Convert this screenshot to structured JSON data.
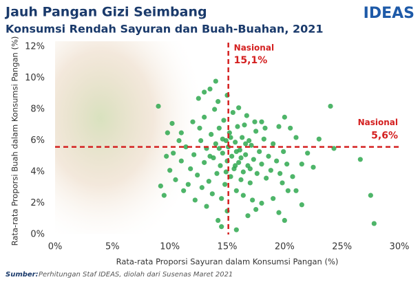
{
  "chart_data": {
    "type": "scatter",
    "title": "Jauh Pangan Gizi Seimbang",
    "subtitle": "Konsumsi Rendah Sayuran dan Buah-Buahan, 2021",
    "logo": "IDEAS",
    "x_label": "Rata-rata Proporsi Sayuran dalam Konsumsi Pangan (%)",
    "y_label": "Rata-rata Proporsi Buah dalam Konsumsi Pangan (%)",
    "source_label": "Sumber:",
    "source_text": "Perhitungan Staf IDEAS, diolah dari Susenas Maret 2021",
    "color": "#2fa84f",
    "xlim": [
      0,
      30
    ],
    "ylim": [
      0,
      12
    ],
    "xticks": [
      {
        "value": 0,
        "label": "0%"
      },
      {
        "value": 5,
        "label": "5%"
      },
      {
        "value": 10,
        "label": "10%"
      },
      {
        "value": 15,
        "label": "15%"
      },
      {
        "value": 20,
        "label": "20%"
      },
      {
        "value": 25,
        "label": "25%"
      },
      {
        "value": 30,
        "label": "30%"
      }
    ],
    "yticks": [
      {
        "value": 0,
        "label": "0%"
      },
      {
        "value": 2,
        "label": "2%"
      },
      {
        "value": 4,
        "label": "4%"
      },
      {
        "value": 6,
        "label": "6%"
      },
      {
        "value": 8,
        "label": "8%"
      },
      {
        "value": 10,
        "label": "10%"
      },
      {
        "value": 12,
        "label": "12%"
      }
    ],
    "reference_lines": [
      {
        "axis": "x",
        "value": 15.1,
        "label": "Nasional",
        "value_label": "15,1%",
        "color": "#d42020"
      },
      {
        "axis": "y",
        "value": 5.6,
        "label": "Nasional",
        "value_label": "5,6%",
        "color": "#d42020"
      }
    ],
    "x": [
      24,
      24.3,
      26.6,
      27.5,
      27.8,
      22.5,
      21.5,
      14,
      12.5,
      9,
      17.2,
      19.5,
      20,
      14.5,
      15.8,
      14.2,
      9.5,
      9.2,
      9.8,
      10.2,
      23,
      20,
      20.5,
      21,
      19.5,
      18,
      13,
      13.5,
      12,
      11,
      22,
      21.5,
      20.7,
      19.8,
      21,
      18,
      17.5,
      16.8,
      15,
      13.2,
      12.2,
      11.2,
      10.5,
      10,
      9.7,
      19,
      20.3,
      11.8,
      12.1,
      12.4,
      12.7,
      13.0,
      13.2,
      13.4,
      13.6,
      13.8,
      14.0,
      14.1,
      14.3,
      14.4,
      14.6,
      14.7,
      14.8,
      14.9,
      15.0,
      15.1,
      15.2,
      15.3,
      15.4,
      15.5,
      15.6,
      15.7,
      15.8,
      15.9,
      16.0,
      16.1,
      16.2,
      16.3,
      16.4,
      16.5,
      16.6,
      16.8,
      16.9,
      17.0,
      17.1,
      17.3,
      17.5,
      17.6,
      17.8,
      18.0,
      18.2,
      18.4,
      18.6,
      18.8,
      19.0,
      19.3,
      19.6,
      19.9,
      20.2,
      13.0,
      12.6,
      11.4,
      11.0,
      10.8,
      10.3,
      13.9,
      14.2,
      15.0,
      16.0,
      16.7,
      17.4,
      18.3,
      12.8,
      13.7,
      14.5,
      16.4,
      11.6,
      14.9,
      15.3,
      15.8,
      14.6,
      16.2,
      13.5,
      17.0,
      15.7,
      14.3,
      16.6
    ],
    "y": [
      8.2,
      5.5,
      4.8,
      2.5,
      0.7,
      4.3,
      1.9,
      9.8,
      8.7,
      8.2,
      2.2,
      1.4,
      0.9,
      0.5,
      0.3,
      0.9,
      2.5,
      3.1,
      6.5,
      7.1,
      6.1,
      7.5,
      6.8,
      6.2,
      6.9,
      7.2,
      9.1,
      9.3,
      7.2,
      6.5,
      5.2,
      4.5,
      3.7,
      3.3,
      2.8,
      2.0,
      1.6,
      1.2,
      1.5,
      1.8,
      2.2,
      2.8,
      3.5,
      4.1,
      5,
      2.3,
      2.8,
      4.2,
      5.1,
      3.8,
      6.0,
      4.6,
      5.5,
      3.4,
      6.4,
      4.9,
      5.8,
      3.9,
      6.8,
      4.4,
      5.2,
      7.3,
      3.2,
      6.0,
      4.7,
      5.6,
      6.5,
      3.7,
      5.0,
      7.8,
      4.2,
      5.9,
      2.8,
      6.9,
      4.6,
      5.4,
      3.5,
      6.2,
      4.0,
      7.0,
      5.1,
      4.4,
      6.0,
      3.3,
      5.7,
      4.8,
      6.6,
      3.9,
      5.3,
      4.5,
      6.1,
      3.6,
      5.0,
      4.1,
      5.8,
      4.7,
      3.9,
      5.3,
      4.5,
      7.5,
      6.8,
      5.6,
      4.7,
      6.0,
      5.2,
      8.0,
      8.5,
      8.9,
      8.1,
      7.6,
      7.2,
      6.8,
      3.0,
      2.6,
      2.3,
      2.5,
      3.2,
      4.0,
      6.2,
      5.3,
      6.1,
      4.9,
      5.0,
      4.2,
      4.4,
      5.5,
      5.8
    ]
  }
}
